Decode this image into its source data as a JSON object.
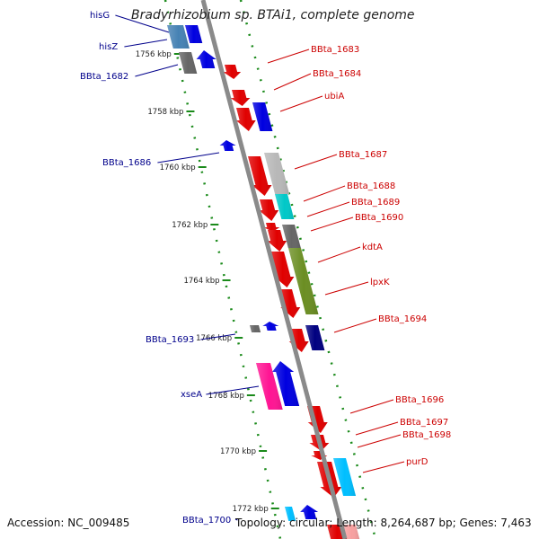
{
  "title": "Bradyrhizobium sp. BTAi1, complete genome",
  "accession": "Accession: NC_009485",
  "topology": "Topology: circular; Length: 8,264,687 bp; Genes: 7,463",
  "colors": {
    "backbone": "#8a8a8a",
    "tick": "#1a8a1a",
    "label_forward": "#cc0000",
    "label_reverse": "#00008b",
    "red": "#e00000",
    "blue": "#0000e0",
    "steelblue": "#4682b4",
    "gray": "#666666",
    "silver": "#b8b8b8",
    "cyan": "#00c8c8",
    "olive": "#6b8e23",
    "navy": "#000080",
    "pink": "#ff1493",
    "skyblue": "#00bfff"
  },
  "scale": [
    {
      "label": "1756 kbp"
    },
    {
      "label": "1758 kbp"
    },
    {
      "label": "1760 kbp"
    },
    {
      "label": "1762 kbp"
    },
    {
      "label": "1764 kbp"
    },
    {
      "label": "1766 kbp"
    },
    {
      "label": "1768 kbp"
    },
    {
      "label": "1770 kbp"
    },
    {
      "label": "1772 kbp"
    }
  ],
  "genes_left": [
    {
      "name": "hisG"
    },
    {
      "name": "hisZ"
    },
    {
      "name": "BBta_1682"
    },
    {
      "name": "BBta_1686"
    },
    {
      "name": "BBta_1693"
    },
    {
      "name": "xseA"
    },
    {
      "name": "BBta_1700"
    }
  ],
  "genes_right": [
    {
      "name": "BBta_1683"
    },
    {
      "name": "BBta_1684"
    },
    {
      "name": "ubiA"
    },
    {
      "name": "BBta_1687"
    },
    {
      "name": "BBta_1688"
    },
    {
      "name": "BBta_1689"
    },
    {
      "name": "BBta_1690"
    },
    {
      "name": "kdtA"
    },
    {
      "name": "lpxK"
    },
    {
      "name": "BBta_1694"
    },
    {
      "name": "BBta_1696"
    },
    {
      "name": "BBta_1697"
    },
    {
      "name": "BBta_1698"
    },
    {
      "name": "purD"
    }
  ]
}
